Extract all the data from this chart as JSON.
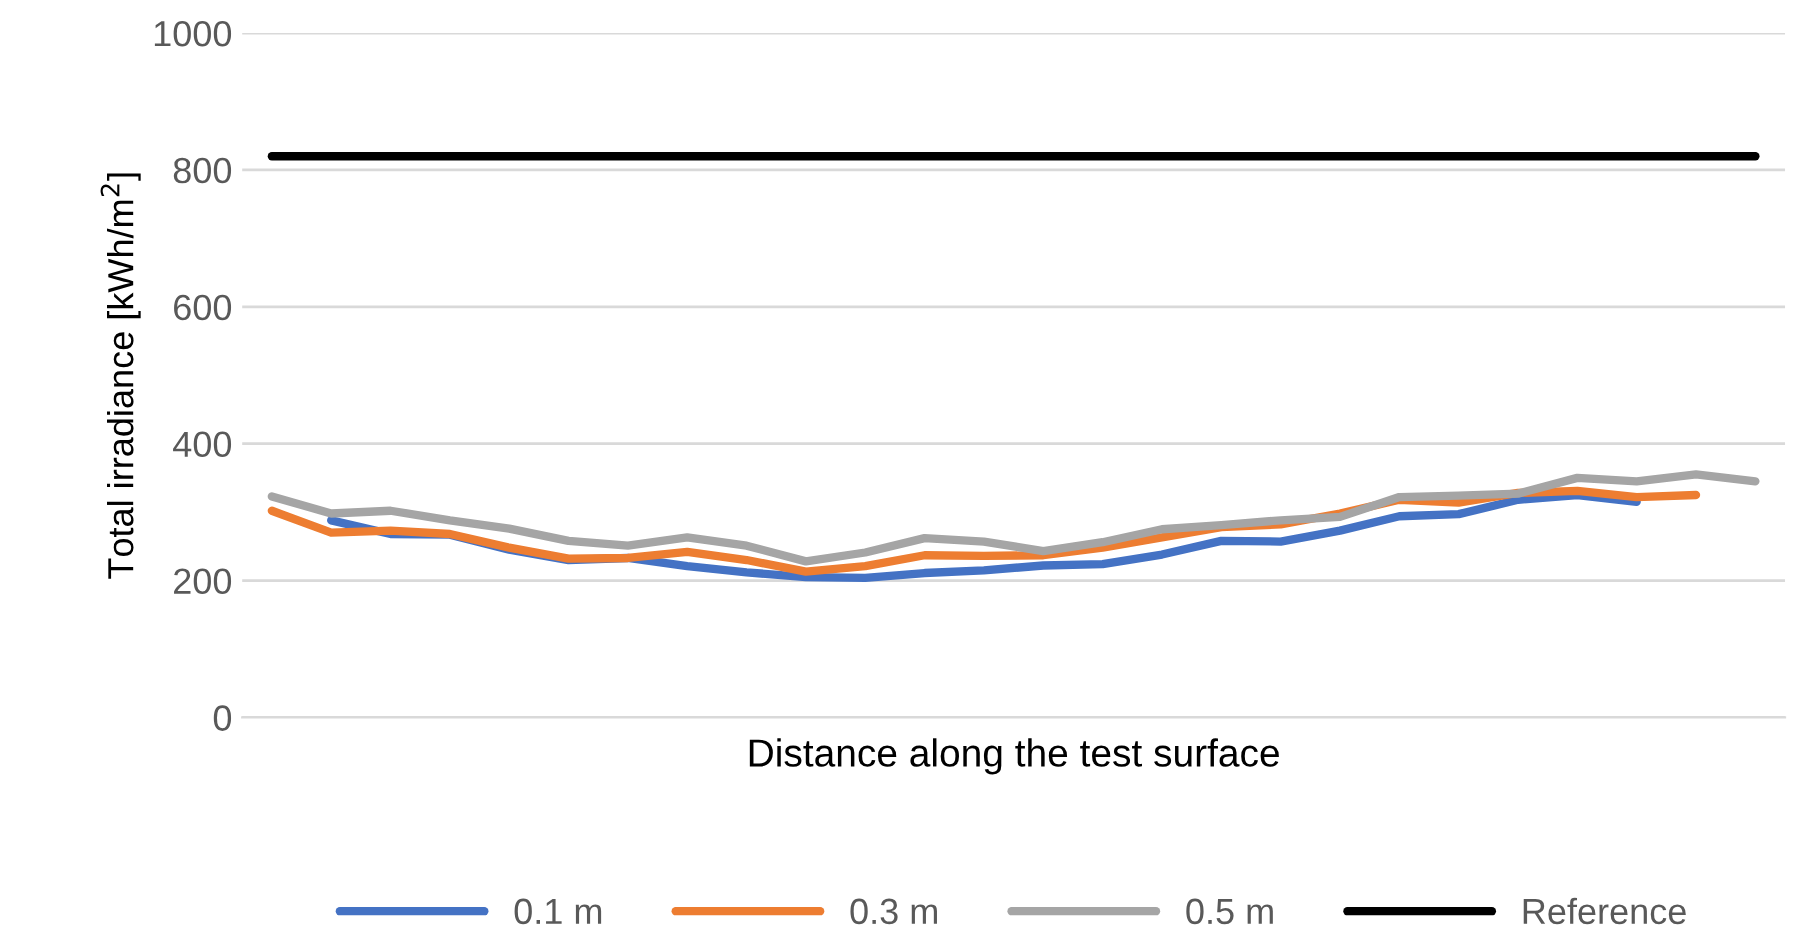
{
  "chart_data": {
    "type": "line",
    "xlabel": "Distance along the test surface",
    "ylabel": "Total irradiance [kWh/m$^{2}$]",
    "categories": [
      null,
      null,
      null,
      null,
      null,
      null,
      null,
      null,
      null,
      null,
      null,
      null,
      null,
      null,
      null,
      null,
      null,
      null,
      null,
      null,
      null,
      null,
      null,
      null,
      null,
      null
    ],
    "series": [
      {
        "name": "0.1 m",
        "color": "#4472c4",
        "values": [
          null,
          288,
          268,
          267,
          245,
          230,
          233,
          221,
          212,
          205,
          204,
          211,
          215,
          222,
          224,
          238,
          258,
          257,
          273,
          294,
          297,
          318,
          325,
          315,
          null,
          null
        ]
      },
      {
        "name": "0.3 m",
        "color": "#ed7d31",
        "values": [
          302,
          270,
          273,
          268,
          248,
          232,
          233,
          242,
          230,
          213,
          221,
          237,
          236,
          237,
          248,
          263,
          278,
          282,
          298,
          318,
          314,
          328,
          331,
          322,
          325,
          null
        ]
      },
      {
        "name": "0.5 m",
        "color": "#a5a5a5",
        "values": [
          323,
          298,
          302,
          288,
          276,
          258,
          251,
          263,
          251,
          228,
          241,
          262,
          257,
          243,
          256,
          275,
          281,
          288,
          293,
          322,
          324,
          327,
          350,
          345,
          355,
          345
        ]
      },
      {
        "name": "Reference",
        "color": "#000000",
        "values": [
          820,
          820,
          820,
          820,
          820,
          820,
          820,
          820,
          820,
          820,
          820,
          820,
          820,
          820,
          820,
          820,
          820,
          820,
          820,
          820,
          820,
          820,
          820,
          820,
          820,
          820
        ]
      }
    ],
    "ylim": [
      0,
      1000
    ],
    "yticks": [
      0,
      200,
      400,
      600,
      800,
      1000
    ],
    "grid": "y",
    "legend": "bottom",
    "marker": "none",
    "line_style": "solid"
  }
}
